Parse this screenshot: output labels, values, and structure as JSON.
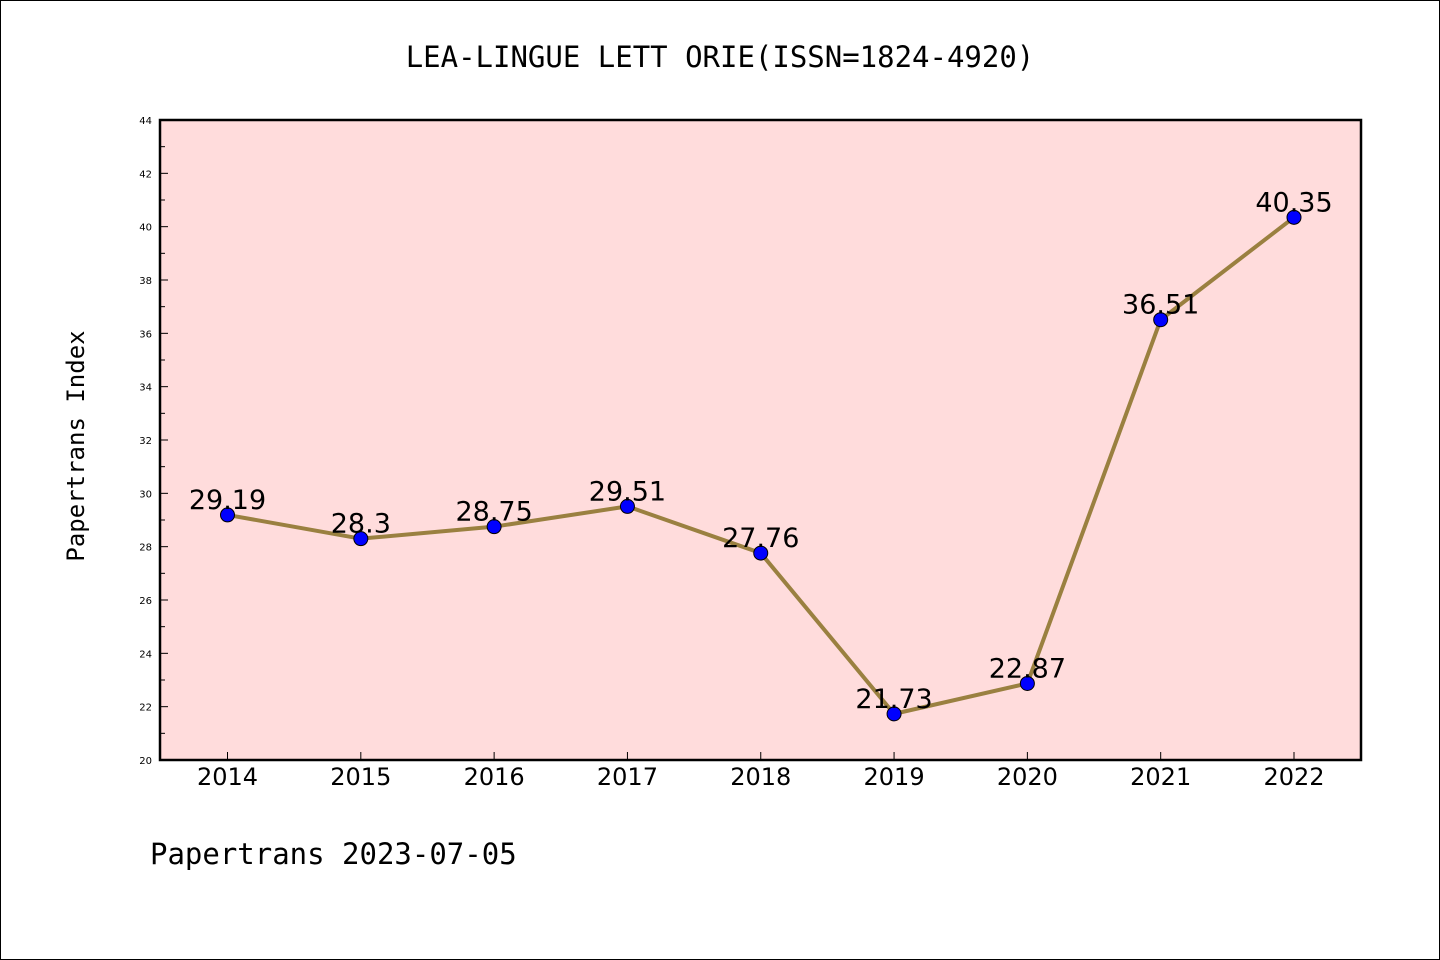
{
  "chart_data": {
    "type": "line",
    "title": "LEA-LINGUE LETT ORIE(ISSN=1824-4920)",
    "ylabel": "Papertrans Index",
    "xlabel": "",
    "categories": [
      "2014",
      "2015",
      "2016",
      "2017",
      "2018",
      "2019",
      "2020",
      "2021",
      "2022"
    ],
    "values": [
      29.19,
      28.3,
      28.75,
      29.51,
      27.76,
      21.73,
      22.87,
      36.51,
      40.35
    ],
    "data_labels": [
      "29.19",
      "28.3",
      "28.75",
      "29.51",
      "27.76",
      "21.73",
      "22.87",
      "36.51",
      "40.35"
    ],
    "ylim": [
      20,
      44
    ],
    "yticks": [
      "20",
      "22",
      "24",
      "26",
      "28",
      "30",
      "32",
      "34",
      "36",
      "38",
      "40",
      "42",
      "44"
    ],
    "grid": false,
    "legend": "none",
    "colors": {
      "plot_background": "#ffdcdc",
      "line": "#9a8040",
      "marker": "#0000ff",
      "axis": "#000000"
    },
    "footer": "Papertrans 2023-07-05"
  }
}
